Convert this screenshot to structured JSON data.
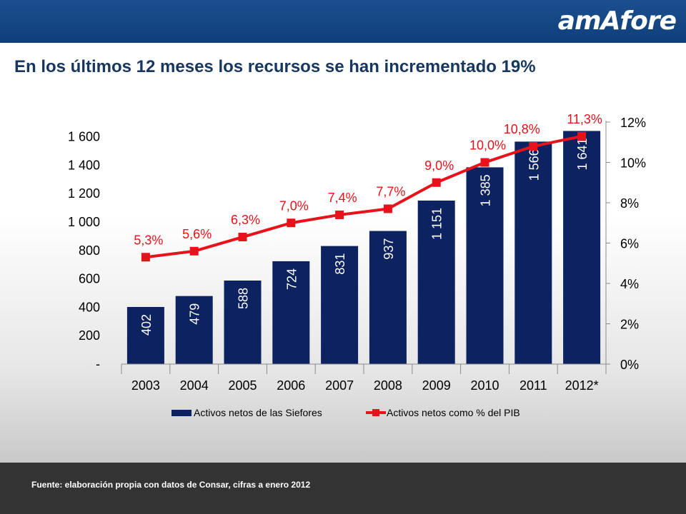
{
  "header": {
    "logo_text": "amAfore",
    "title": "En los últimos 12 meses los recursos se han incrementado 19%"
  },
  "footer": {
    "source": "Fuente: elaboración propia con datos de Consar, cifras a enero 2012"
  },
  "colors": {
    "bars": "#0d2260",
    "line": "#e8121a",
    "header": "#1c4f8f",
    "footer": "#333333",
    "title": "#17375e"
  },
  "chart_data": {
    "type": "bar",
    "categories": [
      "2003",
      "2004",
      "2005",
      "2006",
      "2007",
      "2008",
      "2009",
      "2010",
      "2011",
      "2012*"
    ],
    "series": [
      {
        "name": "Activos netos de las Siefores",
        "type": "bar",
        "axis": "left",
        "values": [
          402,
          479,
          588,
          724,
          831,
          937,
          1151,
          1385,
          1566,
          1641
        ],
        "labels": [
          "402",
          "479",
          "588",
          "724",
          "831",
          "937",
          "1 151",
          "1 385",
          "1 566",
          "1 641"
        ]
      },
      {
        "name": "Activos netos como % del PIB",
        "type": "line",
        "axis": "right",
        "values": [
          5.3,
          5.6,
          6.3,
          7.0,
          7.4,
          7.7,
          9.0,
          10.0,
          10.8,
          11.3
        ],
        "labels": [
          "5,3%",
          "5,6%",
          "6,3%",
          "7,0%",
          "7,4%",
          "7,7%",
          "9,0%",
          "10,0%",
          "10,8%",
          "11,3%"
        ]
      }
    ],
    "y_left": {
      "ylim": [
        0,
        1700
      ],
      "ticks": [
        0,
        200,
        400,
        600,
        800,
        1000,
        1200,
        1400,
        1600
      ],
      "tick_labels": [
        "-",
        "200",
        "400",
        "600",
        "800",
        "1 000",
        "1 200",
        "1 400",
        "1 600"
      ]
    },
    "y_right": {
      "ylim": [
        0,
        12
      ],
      "ticks": [
        0,
        2,
        4,
        6,
        8,
        10,
        12
      ],
      "tick_labels": [
        "0%",
        "2%",
        "4%",
        "6%",
        "8%",
        "10%",
        "12%"
      ]
    },
    "grid": false,
    "legend_position": "bottom"
  }
}
